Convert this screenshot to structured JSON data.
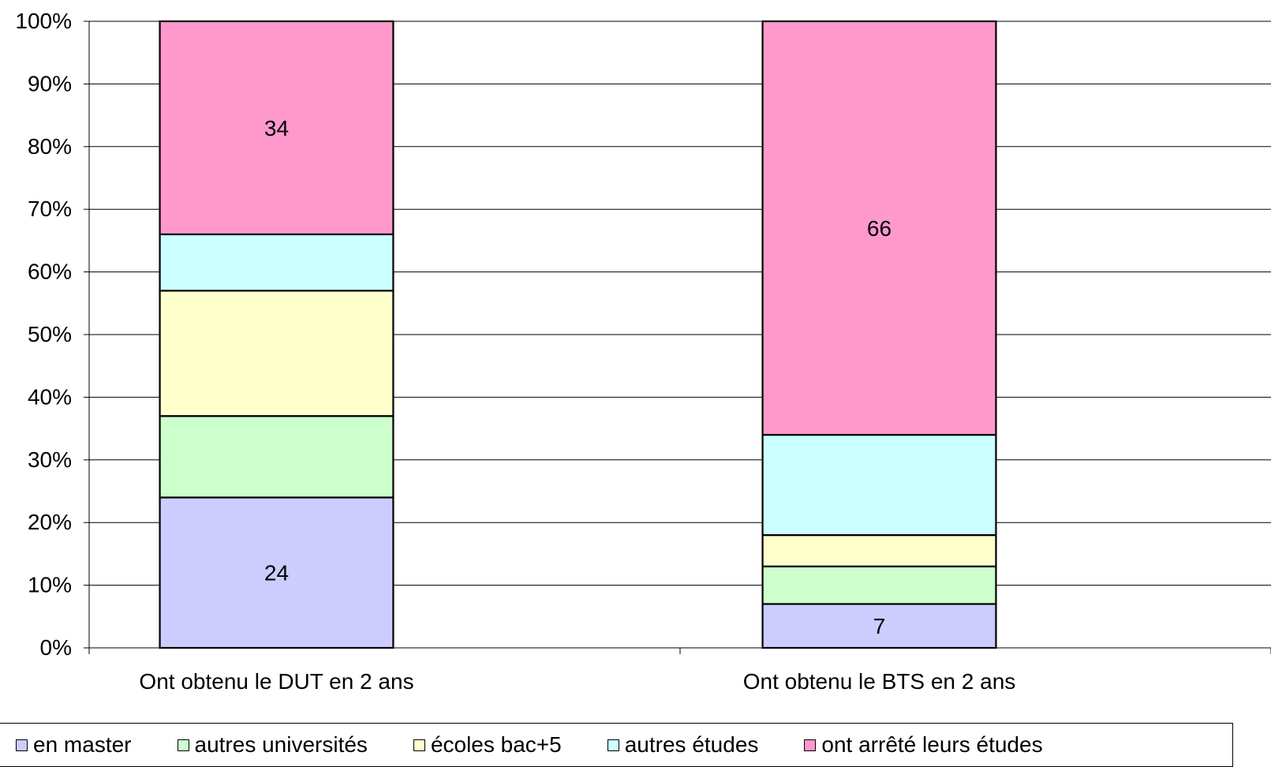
{
  "chart_data": {
    "type": "bar",
    "stacked": true,
    "percent": true,
    "categories": [
      "Ont obtenu le DUT en 2 ans",
      "Ont obtenu le BTS en 2 ans"
    ],
    "series": [
      {
        "name": "en master",
        "values": [
          24,
          7
        ],
        "color": "#ccccff",
        "labels": [
          "24",
          "7"
        ]
      },
      {
        "name": "autres universités",
        "values": [
          13,
          6
        ],
        "color": "#ccffcc",
        "labels": [
          "",
          ""
        ]
      },
      {
        "name": "écoles bac+5",
        "values": [
          20,
          5
        ],
        "color": "#ffffcc",
        "labels": [
          "",
          ""
        ]
      },
      {
        "name": "autres études",
        "values": [
          9,
          16
        ],
        "color": "#ccffff",
        "labels": [
          "",
          ""
        ]
      },
      {
        "name": "ont arrêté leurs études",
        "values": [
          34,
          66
        ],
        "color": "#ff99cc",
        "labels": [
          "34",
          "66"
        ]
      }
    ],
    "ylim": [
      0,
      100
    ],
    "yticks": [
      "0%",
      "10%",
      "20%",
      "30%",
      "40%",
      "50%",
      "60%",
      "70%",
      "80%",
      "90%",
      "100%"
    ],
    "grid": true,
    "legend": "bottom"
  }
}
